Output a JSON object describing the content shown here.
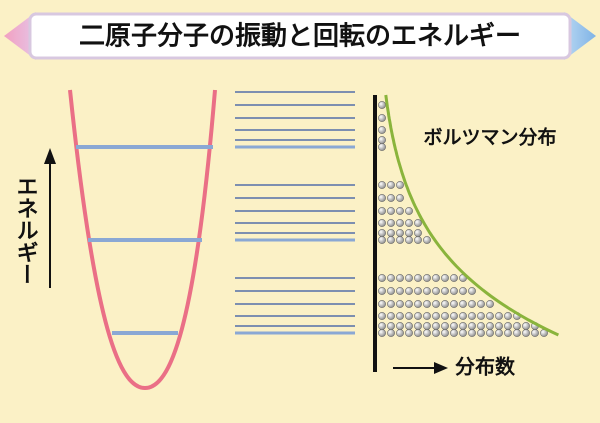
{
  "header": {
    "title": "二原子分子の振動と回転のエネルギー"
  },
  "axis": {
    "energy_label": "エネルギー",
    "population_label": "分布数"
  },
  "legend": {
    "distribution_label": "ボルツマン分布"
  }
}
